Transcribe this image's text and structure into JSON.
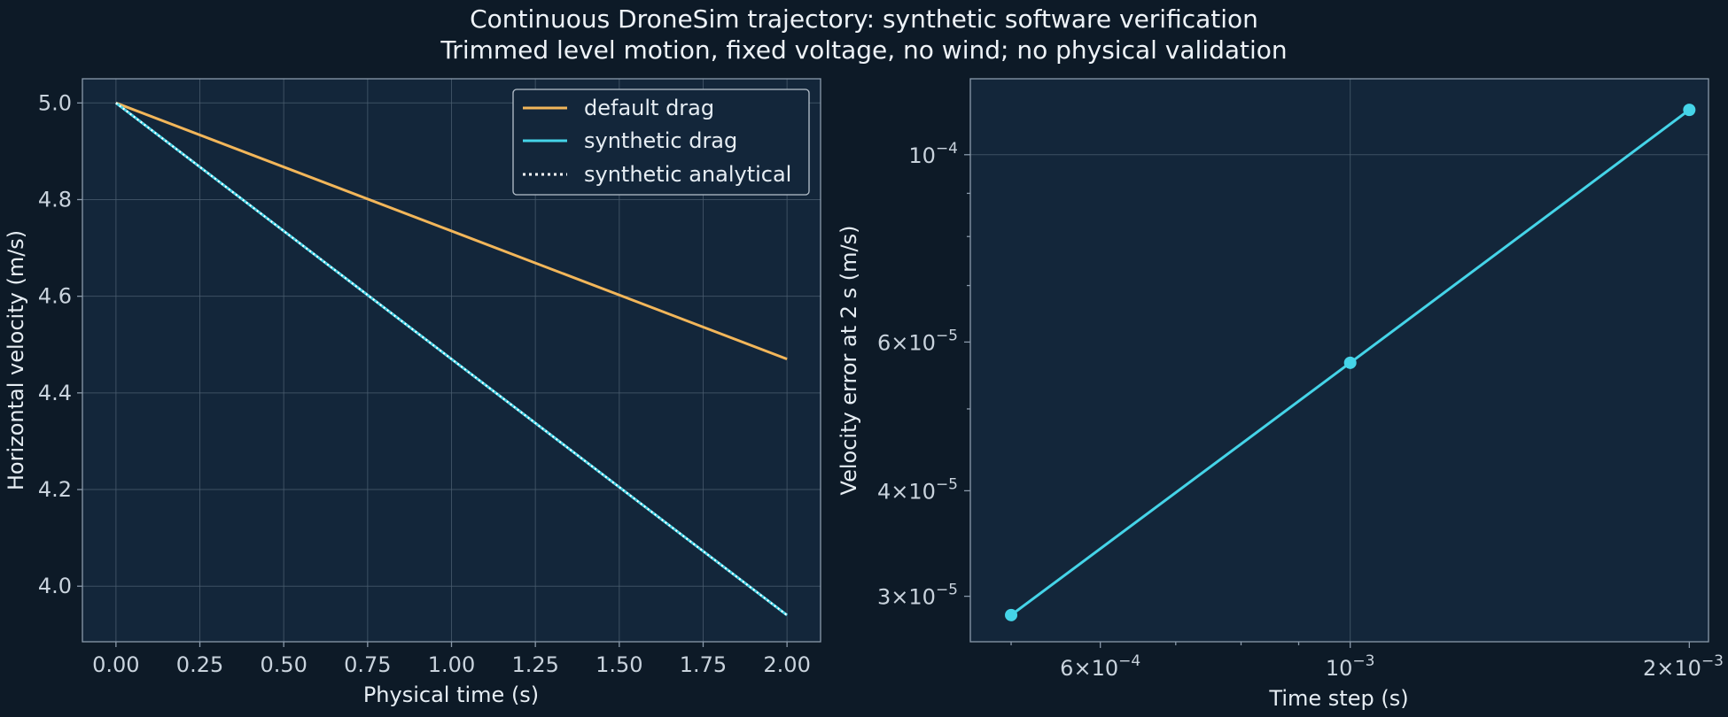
{
  "figure": {
    "title_line1": "Continuous DroneSim trajectory: synthetic software verification",
    "title_line2": "Trimmed level motion, fixed voltage, no wind; no physical validation"
  },
  "chart_data": [
    {
      "type": "line",
      "xlabel": "Physical time (s)",
      "ylabel": "Horizontal velocity (m/s)",
      "xlim": [
        -0.1,
        2.1
      ],
      "ylim": [
        3.885,
        5.05
      ],
      "xticks": [
        0.0,
        0.25,
        0.5,
        0.75,
        1.0,
        1.25,
        1.5,
        1.75,
        2.0
      ],
      "xtick_labels": [
        "0.00",
        "0.25",
        "0.50",
        "0.75",
        "1.00",
        "1.25",
        "1.50",
        "1.75",
        "2.00"
      ],
      "yticks": [
        4.0,
        4.2,
        4.4,
        4.6,
        4.8,
        5.0
      ],
      "ytick_labels": [
        "4.0",
        "4.2",
        "4.4",
        "4.6",
        "4.8",
        "5.0"
      ],
      "grid": true,
      "legend": "top-right",
      "series": [
        {
          "name": "default drag",
          "color": "#f2b65a",
          "style": "solid",
          "x": [
            0.0,
            2.0
          ],
          "y": [
            5.0,
            4.47
          ]
        },
        {
          "name": "synthetic drag",
          "color": "#45d4e8",
          "style": "solid",
          "x": [
            0.0,
            2.0
          ],
          "y": [
            5.0,
            3.94
          ]
        },
        {
          "name": "synthetic analytical",
          "color": "#ffffff",
          "style": "dotted",
          "x": [
            0.0,
            2.0
          ],
          "y": [
            5.0,
            3.94
          ]
        }
      ]
    },
    {
      "type": "line",
      "xlabel": "Time step (s)",
      "ylabel": "Velocity error at 2 s (m/s)",
      "xscale": "log",
      "yscale": "log",
      "xlim": [
        0.00046,
        0.00208
      ],
      "ylim": [
        2.65e-05,
        0.000123
      ],
      "xticks": [
        0.0006,
        0.001,
        0.002
      ],
      "xtick_labels": [
        {
          "mant": "6×",
          "base": "10",
          "exp": "−4"
        },
        {
          "mant": "",
          "base": "10",
          "exp": "−3"
        },
        {
          "mant": "2×",
          "base": "10",
          "exp": "−3"
        }
      ],
      "yticks": [
        3e-05,
        4e-05,
        6e-05,
        0.0001
      ],
      "ytick_labels": [
        {
          "mant": "3×",
          "base": "10",
          "exp": "−5"
        },
        {
          "mant": "4×",
          "base": "10",
          "exp": "−5"
        },
        {
          "mant": "6×",
          "base": "10",
          "exp": "−5"
        },
        {
          "mant": "",
          "base": "10",
          "exp": "−4"
        }
      ],
      "grid": true,
      "series": [
        {
          "color": "#45d4e8",
          "marker": "circle",
          "x": [
            0.0005,
            0.001,
            0.002
          ],
          "y": [
            2.85e-05,
            5.67e-05,
            0.000113
          ]
        }
      ]
    }
  ]
}
